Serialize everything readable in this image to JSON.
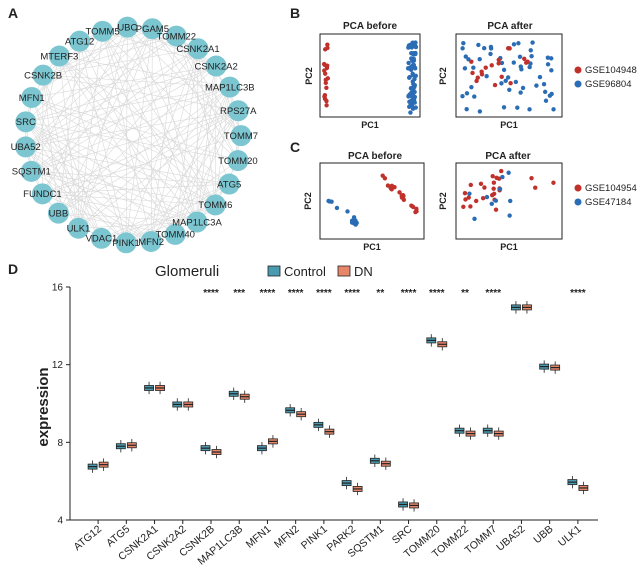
{
  "panels": {
    "a": "A",
    "b": "B",
    "c": "C",
    "d": "D"
  },
  "network": {
    "nodes": [
      "UBC",
      "PGAM5",
      "TOMM22",
      "CSNK2A1",
      "CSNK2A2",
      "MAP1LC3B",
      "RPS27A",
      "TOMM7",
      "TOMM20",
      "ATG5",
      "TOMM6",
      "MAP1LC3A",
      "TOMM40",
      "MFN2",
      "PINK1",
      "VDAC1",
      "ULK1",
      "UBB",
      "FUNDC1",
      "SQSTM1",
      "UBA52",
      "SRC",
      "MFN1",
      "CSNK2B",
      "MTERF3",
      "ATG12",
      "TOMM5"
    ],
    "colors": {
      "node": "#7cc6d1",
      "edge": "#d9d9d9"
    }
  },
  "pca_b": {
    "before_title": "PCA before",
    "after_title": "PCA after",
    "xlabel": "PC1",
    "ylabel": "PC2",
    "legend": [
      {
        "label": "GSE104948",
        "color": "#c0312b"
      },
      {
        "label": "GSE96804",
        "color": "#2a6db5"
      }
    ]
  },
  "pca_c": {
    "before_title": "PCA before",
    "after_title": "PCA after",
    "xlabel": "PC1",
    "ylabel": "PC2",
    "legend": [
      {
        "label": "GSE104954",
        "color": "#c0312b"
      },
      {
        "label": "GSE47184",
        "color": "#2a6db5"
      }
    ]
  },
  "chart_data": {
    "type": "box",
    "title": "Glomeruli",
    "ylabel": "expression",
    "ylim": [
      4,
      16
    ],
    "yticks": [
      4,
      8,
      12,
      16
    ],
    "series": [
      {
        "name": "Control",
        "color": "#4a9bb0"
      },
      {
        "name": "DN",
        "color": "#e8866a"
      }
    ],
    "categories": [
      "ATG12",
      "ATG5",
      "CSNK2A1",
      "CSNK2A2",
      "CSNK2B",
      "MAP1LC3B",
      "MFN1",
      "MFN2",
      "PINK1",
      "PARK2",
      "SQSTM1",
      "SRC",
      "TOMM20",
      "TOMM22",
      "TOMM7",
      "UBA52",
      "UBB",
      "ULK1"
    ],
    "significance": [
      "",
      "",
      "",
      "",
      "****",
      "***",
      "****",
      "****",
      "****",
      "****",
      "**",
      "****",
      "****",
      "**",
      "****",
      "",
      "",
      "****"
    ],
    "medians": {
      "Control": [
        6.75,
        7.8,
        10.8,
        9.95,
        7.7,
        10.5,
        7.7,
        9.65,
        8.9,
        5.9,
        7.05,
        4.8,
        13.25,
        8.6,
        8.6,
        14.95,
        11.9,
        5.95
      ],
      "DN": [
        6.85,
        7.85,
        10.8,
        9.95,
        7.5,
        10.35,
        8.05,
        9.45,
        8.55,
        5.6,
        6.9,
        4.75,
        13.05,
        8.45,
        8.45,
        14.95,
        11.85,
        5.65
      ]
    }
  }
}
